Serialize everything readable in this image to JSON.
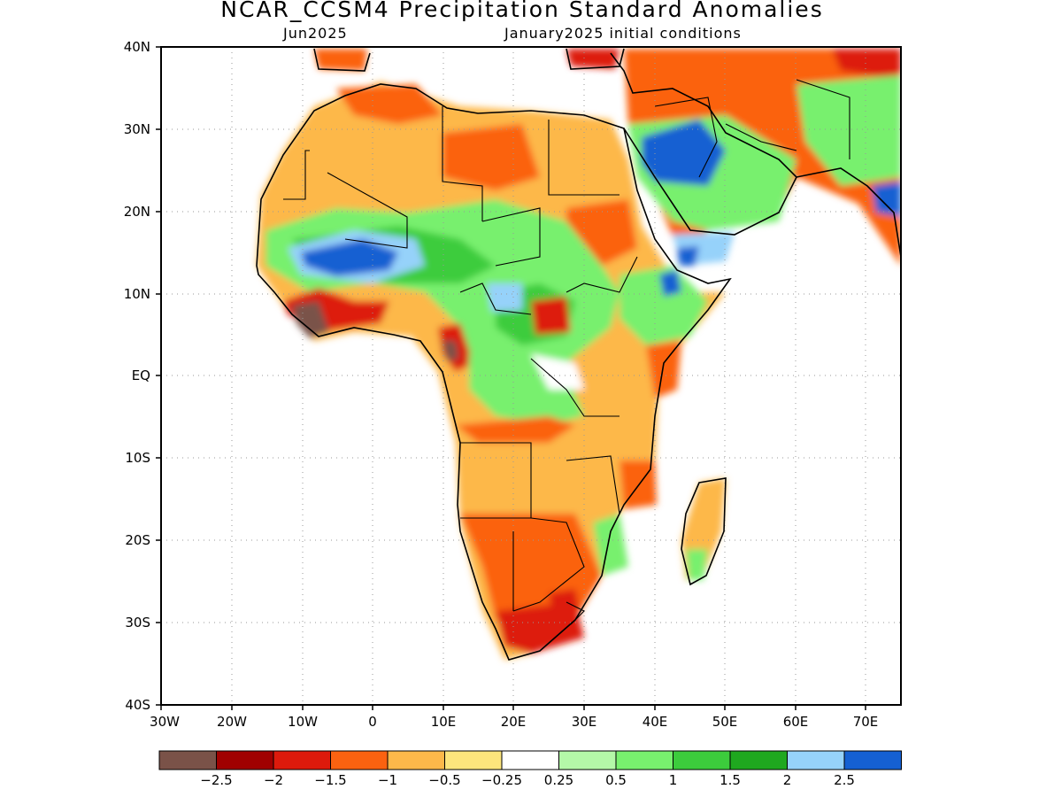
{
  "title": "NCAR_CCSM4 Precipitation Standard Anomalies",
  "subtitle_left": "Jun2025",
  "subtitle_right": "January2025 initial conditions",
  "map": {
    "lon_range": [
      -30,
      75
    ],
    "lat_range": [
      -40,
      40
    ],
    "lon_ticks": [
      "30W",
      "20W",
      "10W",
      "0",
      "10E",
      "20E",
      "30E",
      "40E",
      "50E",
      "60E",
      "70E"
    ],
    "lat_ticks": [
      "40N",
      "30N",
      "20N",
      "10N",
      "EQ",
      "10S",
      "20S",
      "30S",
      "40S"
    ],
    "gridlines": "dotted"
  },
  "legend": {
    "colors": [
      "#7a5248",
      "#a00000",
      "#dd1a0c",
      "#fb6210",
      "#fdb84a",
      "#fde57c",
      "#ffffff",
      "#b4f8a8",
      "#78f06e",
      "#3ccc3c",
      "#1fa81f",
      "#96d2fa",
      "#1560d2"
    ],
    "labels": [
      "−2.5",
      "−2",
      "−1.5",
      "−1",
      "−0.5",
      "−0.25",
      "0.25",
      "0.5",
      "1",
      "1.5",
      "2",
      "2.5"
    ]
  }
}
